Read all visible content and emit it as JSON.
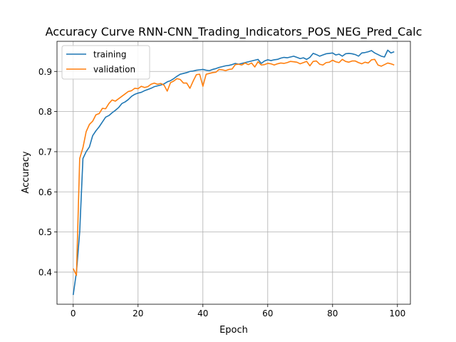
{
  "chart_data": {
    "type": "line",
    "title": "Accuracy Curve RNN-CNN_Trading_Indicators_POS_NEG_Pred_Calc",
    "xlabel": "Epoch",
    "ylabel": "Accuracy",
    "xlim": [
      -5,
      104
    ],
    "ylim": [
      0.32,
      0.975
    ],
    "xticks": [
      0,
      20,
      40,
      60,
      80,
      100
    ],
    "yticks": [
      0.4,
      0.5,
      0.6,
      0.7,
      0.8,
      0.9
    ],
    "xtick_labels": [
      "0",
      "20",
      "40",
      "60",
      "80",
      "100"
    ],
    "ytick_labels": [
      "0.4",
      "0.5",
      "0.6",
      "0.7",
      "0.8",
      "0.9"
    ],
    "grid": true,
    "legend_position": "top-left",
    "series": [
      {
        "name": "training",
        "color": "#1f77b4",
        "x": [
          0,
          1,
          2,
          3,
          4,
          5,
          6,
          7,
          8,
          9,
          10,
          11,
          12,
          13,
          14,
          15,
          16,
          17,
          18,
          19,
          20,
          21,
          22,
          23,
          24,
          25,
          26,
          27,
          28,
          29,
          30,
          31,
          32,
          33,
          34,
          35,
          36,
          37,
          38,
          39,
          40,
          41,
          42,
          43,
          44,
          45,
          46,
          47,
          48,
          49,
          50,
          51,
          52,
          53,
          54,
          55,
          56,
          57,
          58,
          59,
          60,
          61,
          62,
          63,
          64,
          65,
          66,
          67,
          68,
          69,
          70,
          71,
          72,
          73,
          74,
          75,
          76,
          77,
          78,
          79,
          80,
          81,
          82,
          83,
          84,
          85,
          86,
          87,
          88,
          89,
          90,
          91,
          92,
          93,
          94,
          95,
          96,
          97,
          98,
          99
        ],
        "values": [
          0.343,
          0.4,
          0.5,
          0.683,
          0.7,
          0.712,
          0.74,
          0.752,
          0.762,
          0.774,
          0.786,
          0.79,
          0.797,
          0.803,
          0.81,
          0.82,
          0.824,
          0.83,
          0.838,
          0.843,
          0.846,
          0.848,
          0.852,
          0.855,
          0.858,
          0.862,
          0.864,
          0.866,
          0.869,
          0.874,
          0.877,
          0.882,
          0.888,
          0.893,
          0.895,
          0.897,
          0.9,
          0.901,
          0.903,
          0.904,
          0.905,
          0.903,
          0.902,
          0.905,
          0.907,
          0.91,
          0.912,
          0.914,
          0.915,
          0.917,
          0.92,
          0.918,
          0.92,
          0.922,
          0.924,
          0.926,
          0.928,
          0.93,
          0.92,
          0.926,
          0.929,
          0.927,
          0.929,
          0.93,
          0.933,
          0.935,
          0.934,
          0.936,
          0.938,
          0.935,
          0.932,
          0.934,
          0.93,
          0.935,
          0.945,
          0.942,
          0.938,
          0.941,
          0.944,
          0.945,
          0.946,
          0.941,
          0.943,
          0.938,
          0.944,
          0.945,
          0.944,
          0.942,
          0.938,
          0.946,
          0.947,
          0.949,
          0.952,
          0.946,
          0.942,
          0.938,
          0.936,
          0.953,
          0.946,
          0.949
        ]
      },
      {
        "name": "validation",
        "color": "#ff7f0e",
        "x": [
          0,
          1,
          2,
          3,
          4,
          5,
          6,
          7,
          8,
          9,
          10,
          11,
          12,
          13,
          14,
          15,
          16,
          17,
          18,
          19,
          20,
          21,
          22,
          23,
          24,
          25,
          26,
          27,
          28,
          29,
          30,
          31,
          32,
          33,
          34,
          35,
          36,
          37,
          38,
          39,
          40,
          41,
          42,
          43,
          44,
          45,
          46,
          47,
          48,
          49,
          50,
          51,
          52,
          53,
          54,
          55,
          56,
          57,
          58,
          59,
          60,
          61,
          62,
          63,
          64,
          65,
          66,
          67,
          68,
          69,
          70,
          71,
          72,
          73,
          74,
          75,
          76,
          77,
          78,
          79,
          80,
          81,
          82,
          83,
          84,
          85,
          86,
          87,
          88,
          89,
          90,
          91,
          92,
          93,
          94,
          95,
          96,
          97,
          98,
          99
        ],
        "values": [
          0.409,
          0.392,
          0.683,
          0.71,
          0.75,
          0.768,
          0.776,
          0.792,
          0.795,
          0.808,
          0.807,
          0.82,
          0.829,
          0.826,
          0.832,
          0.838,
          0.844,
          0.85,
          0.852,
          0.858,
          0.857,
          0.863,
          0.86,
          0.862,
          0.868,
          0.871,
          0.868,
          0.87,
          0.866,
          0.851,
          0.872,
          0.876,
          0.882,
          0.88,
          0.871,
          0.871,
          0.858,
          0.876,
          0.892,
          0.893,
          0.863,
          0.893,
          0.895,
          0.897,
          0.898,
          0.905,
          0.904,
          0.902,
          0.905,
          0.906,
          0.917,
          0.918,
          0.916,
          0.921,
          0.917,
          0.921,
          0.911,
          0.924,
          0.916,
          0.917,
          0.92,
          0.919,
          0.916,
          0.919,
          0.921,
          0.92,
          0.922,
          0.925,
          0.924,
          0.923,
          0.919,
          0.922,
          0.925,
          0.914,
          0.925,
          0.926,
          0.918,
          0.916,
          0.922,
          0.923,
          0.928,
          0.924,
          0.922,
          0.93,
          0.925,
          0.923,
          0.926,
          0.926,
          0.922,
          0.919,
          0.923,
          0.921,
          0.929,
          0.93,
          0.916,
          0.913,
          0.917,
          0.921,
          0.919,
          0.916
        ]
      }
    ]
  }
}
